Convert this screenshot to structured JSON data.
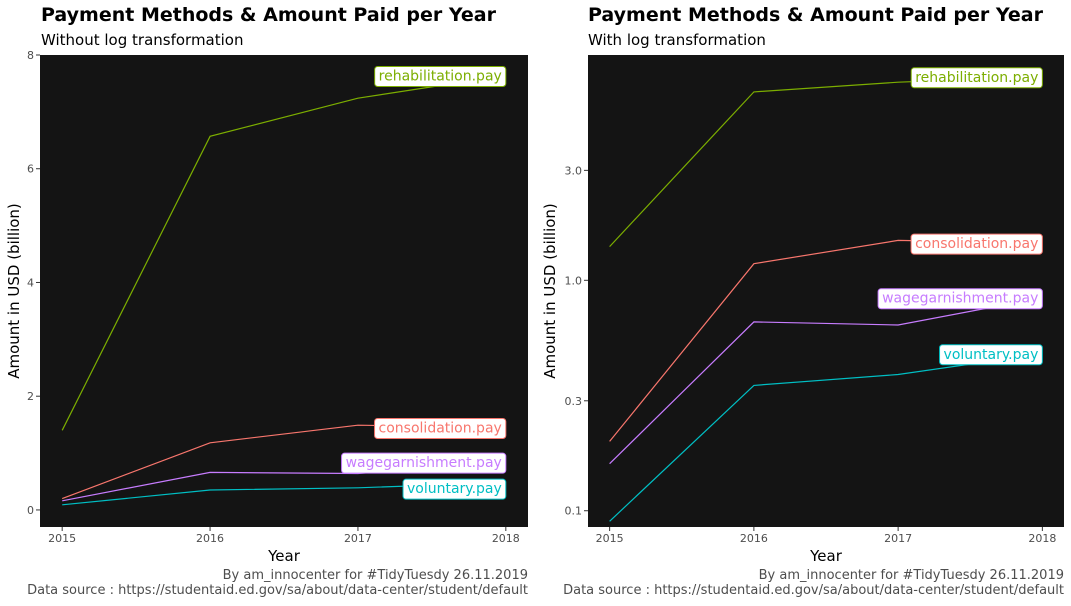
{
  "colors": {
    "panel_background": "#141414",
    "rehabilitation": "#7CAE00",
    "consolidation": "#F8766D",
    "wagegarnishment": "#C77CFF",
    "voluntary": "#00BFC4"
  },
  "left": {
    "title": "Payment Methods & Amount Paid per Year",
    "subtitle": "Without log transformation",
    "caption_line1": "By am_innocenter for #TidyTuesdy 26.11.2019",
    "caption_line2": "Data source : https://studentaid.ed.gov/sa/about/data-center/student/default",
    "chart_data": {
      "type": "line",
      "xlabel": "Year",
      "ylabel": "Amount in USD (billion)",
      "x": [
        2015,
        2016,
        2017,
        2018
      ],
      "xticks": [
        "2015",
        "2016",
        "2017",
        "2018"
      ],
      "yticks": [
        "0",
        "2",
        "4",
        "6",
        "8"
      ],
      "yscale": "linear",
      "ylim": [
        -0.3,
        8.0
      ],
      "grid": false,
      "legend": "direct labels at line ends",
      "series": [
        {
          "name": "rehabilitation.pay",
          "values": [
            1.4,
            6.57,
            7.24,
            7.64
          ]
        },
        {
          "name": "consolidation.pay",
          "values": [
            0.2,
            1.18,
            1.49,
            1.45
          ]
        },
        {
          "name": "wagegarnishment.pay",
          "values": [
            0.16,
            0.66,
            0.64,
            0.84
          ]
        },
        {
          "name": "voluntary.pay",
          "values": [
            0.09,
            0.35,
            0.39,
            0.48
          ]
        }
      ]
    }
  },
  "right": {
    "title": "Payment Methods & Amount Paid per Year",
    "subtitle": "With log transformation",
    "caption_line1": "By am_innocenter for #TidyTuesdy 26.11.2019",
    "caption_line2": "Data source : https://studentaid.ed.gov/sa/about/data-center/student/default",
    "chart_data": {
      "type": "line",
      "xlabel": "Year",
      "ylabel": "Amount in USD (billion)",
      "x": [
        2015,
        2016,
        2017,
        2018
      ],
      "xticks": [
        "2015",
        "2016",
        "2017",
        "2018"
      ],
      "yticks": [
        "0.1",
        "0.3",
        "1.0",
        "3.0"
      ],
      "yscale": "log",
      "ylim": [
        0.085,
        9.5
      ],
      "grid": false,
      "legend": "direct labels at line ends",
      "series": [
        {
          "name": "rehabilitation.pay",
          "values": [
            1.4,
            6.57,
            7.24,
            7.64
          ]
        },
        {
          "name": "consolidation.pay",
          "values": [
            0.2,
            1.18,
            1.49,
            1.45
          ]
        },
        {
          "name": "wagegarnishment.pay",
          "values": [
            0.16,
            0.66,
            0.64,
            0.84
          ]
        },
        {
          "name": "voluntary.pay",
          "values": [
            0.09,
            0.35,
            0.39,
            0.48
          ]
        }
      ]
    }
  }
}
